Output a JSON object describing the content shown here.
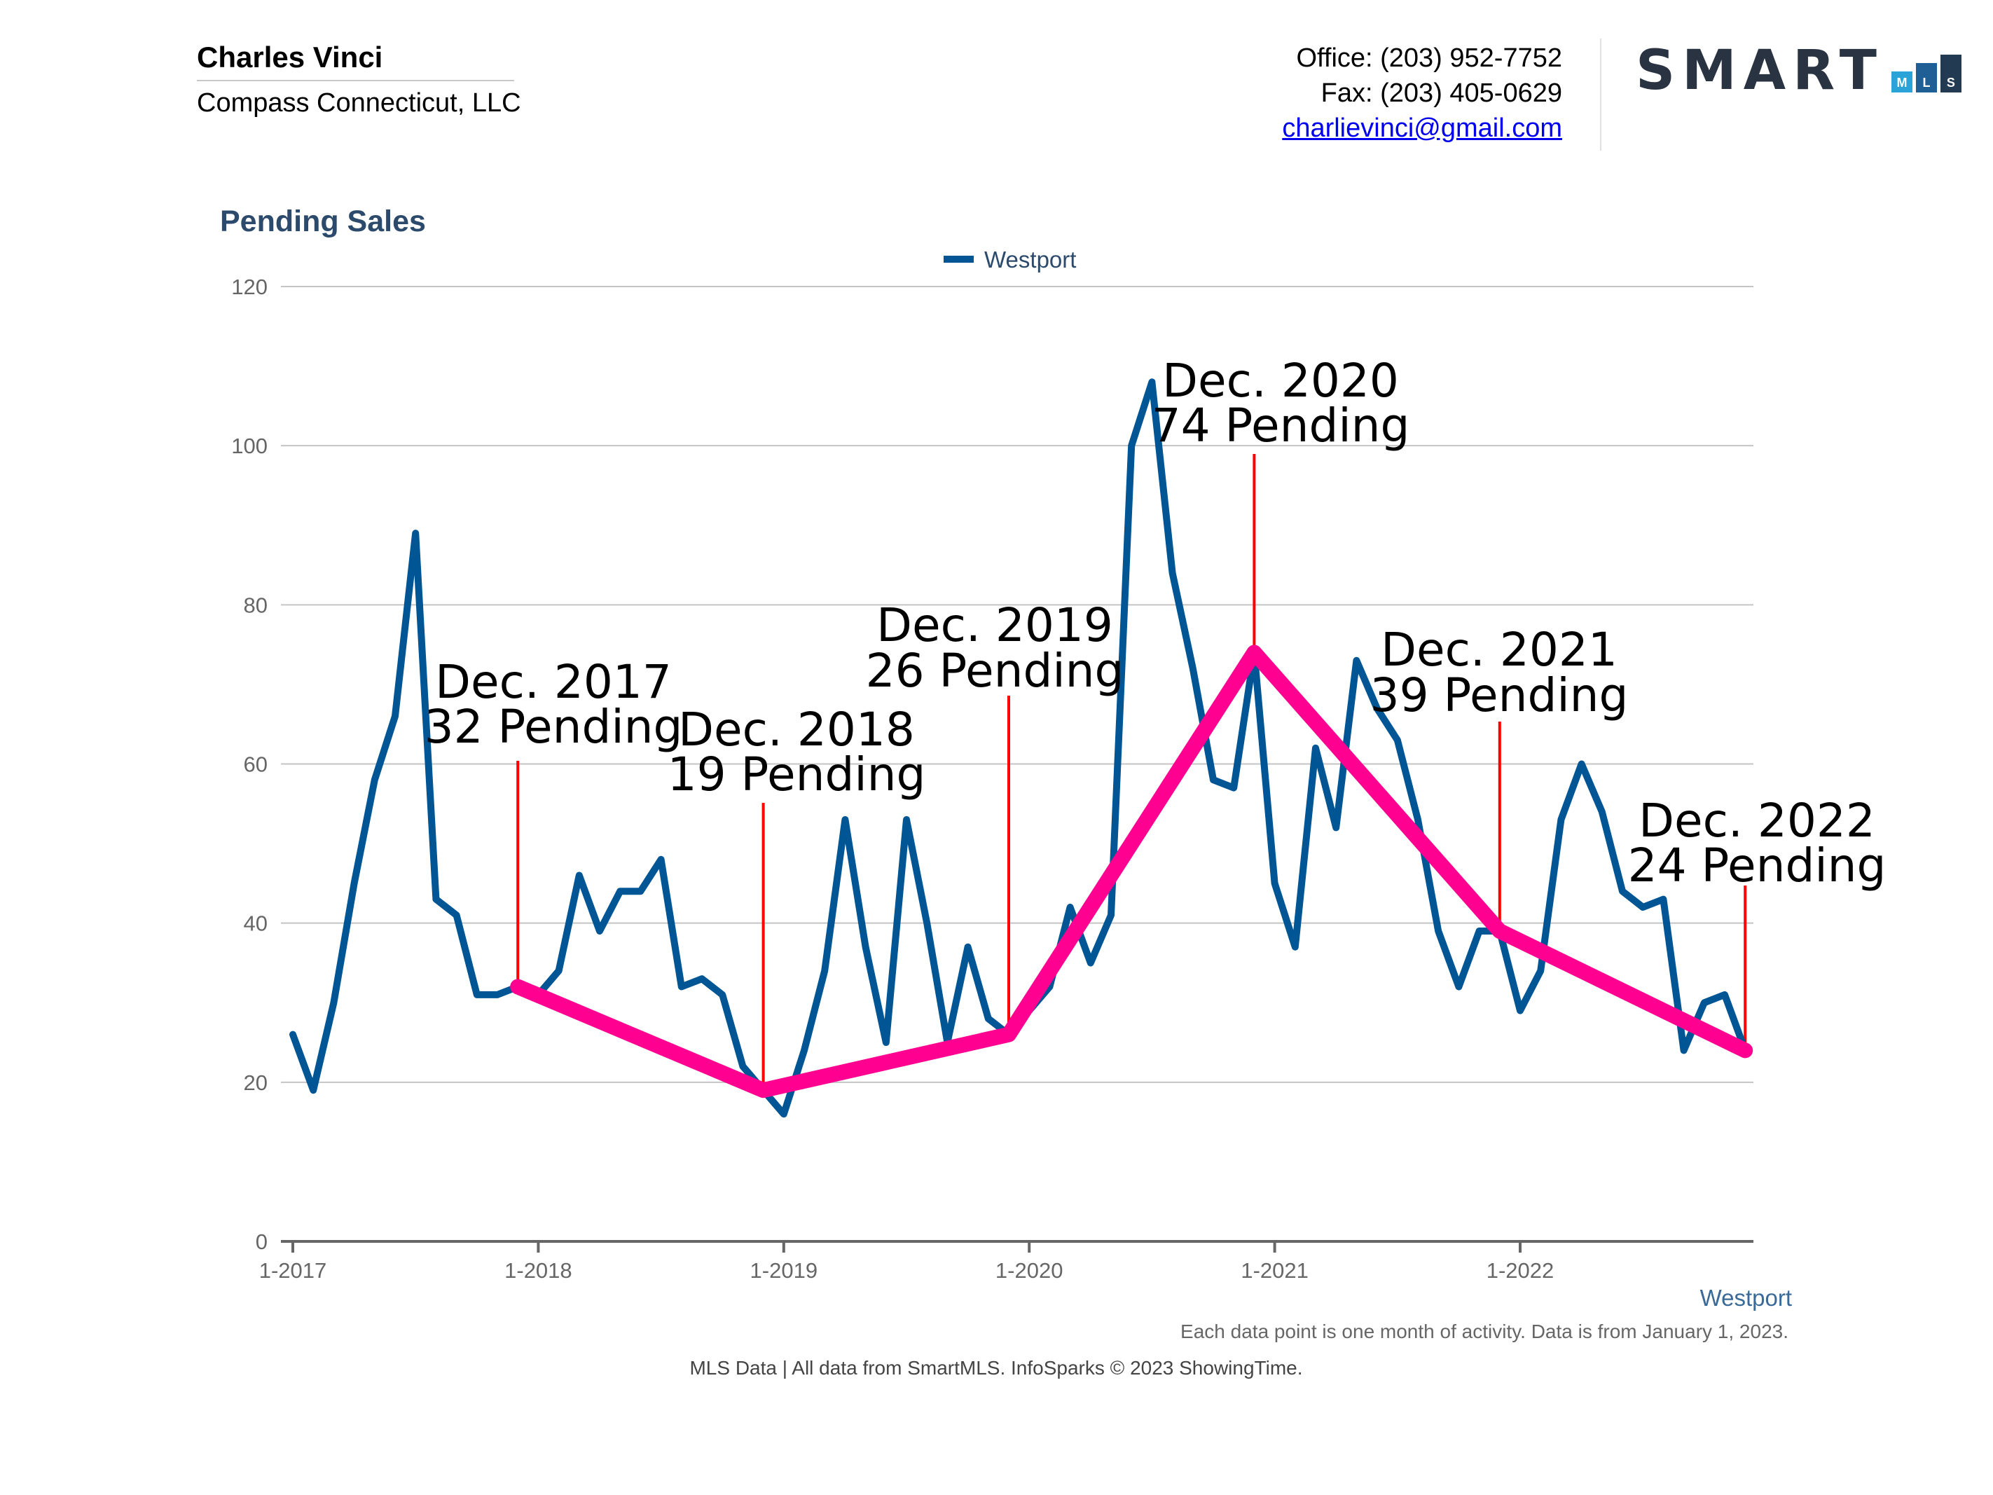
{
  "header": {
    "agent_name": "Charles Vinci",
    "company": "Compass Connecticut, LLC",
    "office": "Office: (203) 952-7752",
    "fax": "Fax: (203) 405-0629",
    "email": "charlievinci@gmail.com"
  },
  "logo": {
    "text": "SMART",
    "bars": [
      {
        "letter": "M",
        "color": "#2aa3d8"
      },
      {
        "letter": "L",
        "color": "#1f5f96"
      },
      {
        "letter": "S",
        "color": "#223a52"
      }
    ]
  },
  "colors": {
    "series": "#005595",
    "trend": "#ff0090",
    "marker": "#ff0000",
    "title": "#2c4a6b"
  },
  "chart_data": {
    "type": "line",
    "title": "Pending Sales",
    "legend": "Westport",
    "legend_placement": "top-center",
    "bottom_label": "Westport",
    "ylim": [
      0,
      120
    ],
    "yticks": [
      0,
      20,
      40,
      60,
      80,
      100,
      120
    ],
    "xticks": [
      "1-2017",
      "1-2018",
      "1-2019",
      "1-2020",
      "1-2021",
      "1-2022"
    ],
    "grid": true,
    "series": [
      {
        "name": "Westport",
        "start": "1-2017",
        "values": [
          26,
          19,
          30,
          45,
          58,
          66,
          89,
          43,
          41,
          31,
          31,
          32,
          31,
          34,
          46,
          39,
          44,
          44,
          48,
          32,
          33,
          31,
          22,
          19,
          16,
          24,
          34,
          53,
          37,
          25,
          53,
          40,
          25,
          37,
          28,
          26,
          29,
          32,
          42,
          35,
          41,
          100,
          108,
          84,
          72,
          58,
          57,
          74,
          45,
          37,
          62,
          52,
          73,
          67,
          63,
          53,
          39,
          32,
          39,
          39,
          29,
          34,
          53,
          60,
          54,
          44,
          42,
          43,
          24,
          30,
          31,
          24
        ]
      }
    ],
    "annotations": [
      {
        "line1": "Dec. 2017",
        "line2": "32 Pending",
        "month_index": 11,
        "value": 32
      },
      {
        "line1": "Dec. 2018",
        "line2": "19 Pending",
        "month_index": 23,
        "value": 19
      },
      {
        "line1": "Dec. 2019",
        "line2": "26 Pending",
        "month_index": 35,
        "value": 26
      },
      {
        "line1": "Dec. 2020",
        "line2": "74 Pending",
        "month_index": 47,
        "value": 74
      },
      {
        "line1": "Dec. 2021",
        "line2": "39 Pending",
        "month_index": 59,
        "value": 39
      },
      {
        "line1": "Dec. 2022",
        "line2": "24 Pending",
        "month_index": 71,
        "value": 24
      }
    ],
    "footnote": "Each data point is one month of activity. Data is from January 1, 2023.",
    "source": "MLS Data | All data from SmartMLS. InfoSparks © 2023 ShowingTime."
  }
}
